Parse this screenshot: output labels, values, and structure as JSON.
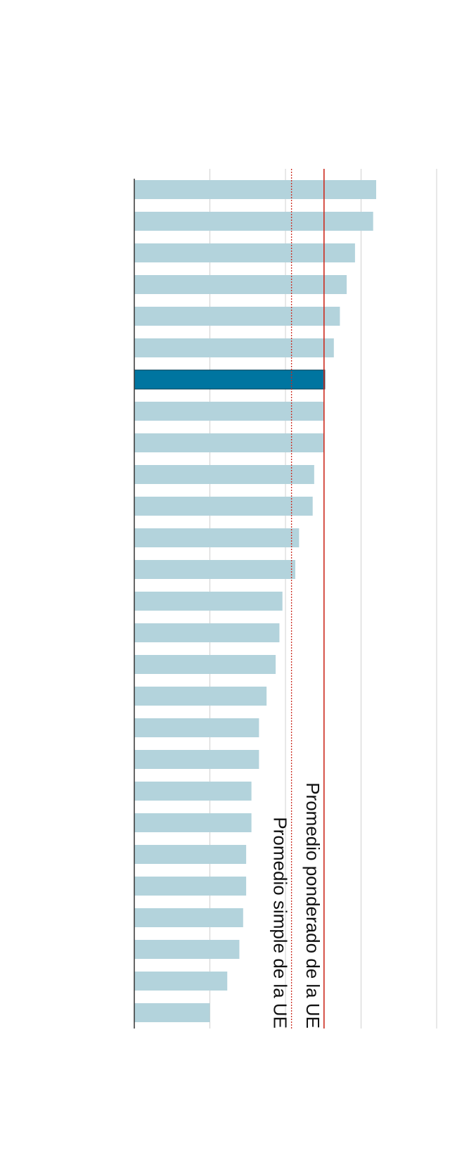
{
  "chart_data": {
    "type": "bar",
    "orientation": "horizontal",
    "xlim": [
      0,
      40
    ],
    "grid": true,
    "values": [
      32.0,
      31.6,
      29.2,
      28.1,
      27.2,
      26.4,
      25.2,
      25.1,
      25.1,
      23.8,
      23.6,
      21.8,
      21.3,
      19.6,
      19.2,
      18.7,
      17.5,
      16.5,
      16.5,
      15.5,
      15.5,
      14.8,
      14.8,
      14.4,
      13.9,
      12.3,
      10.0
    ],
    "highlight_index": 6,
    "reference_lines": [
      {
        "label": "Promedio simple de la UE",
        "value": 20.8,
        "style": "dotted"
      },
      {
        "label": "Promedio ponderado de la UE",
        "value": 25.1,
        "style": "solid"
      }
    ]
  },
  "colors": {
    "bar": "#b3d3dc",
    "highlight": "#0075a0",
    "reference_line": "#cc2a1e",
    "grid": "#d0d0d0",
    "axis": "#333333"
  }
}
